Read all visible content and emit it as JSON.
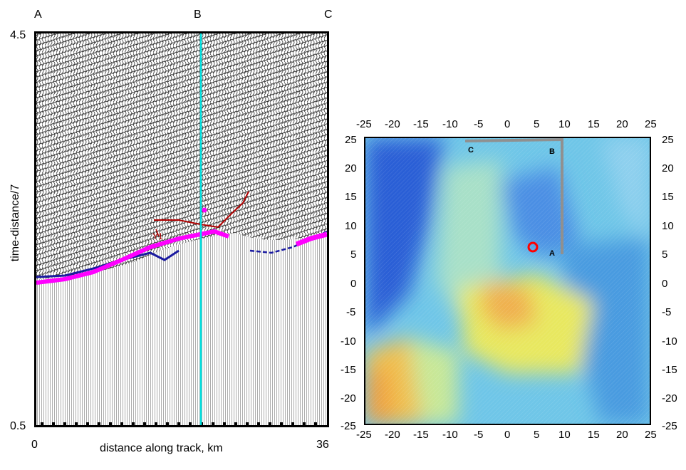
{
  "seismic": {
    "top_labels": [
      "A",
      "B",
      "C"
    ],
    "y_axis": {
      "label": "time-distance/7",
      "top": "4.5",
      "bottom": "0.5"
    },
    "x_axis": {
      "label": "distance along track, km",
      "left": "0",
      "right": "36"
    },
    "annotation": "Y1",
    "colors": {
      "horizon_magenta": "#ff00ff",
      "horizon_blue": "#1a1aa0",
      "red_line": "#b00000",
      "cyan_line": "#00e0e0"
    }
  },
  "map": {
    "x_ticks": [
      "-25",
      "-20",
      "-15",
      "-10",
      "-5",
      "0",
      "5",
      "10",
      "15",
      "20",
      "25"
    ],
    "y_ticks": [
      "25",
      "20",
      "15",
      "10",
      "5",
      "0",
      "-5",
      "-10",
      "-15",
      "-20",
      "-25"
    ],
    "track_labels": {
      "a": "A",
      "b": "B",
      "c": "C"
    },
    "colors": {
      "deep": "#2a5fd6",
      "mid": "#6fc6e8",
      "shallow": "#e8e860",
      "peak": "#f0a040",
      "track": "#909090",
      "marker": "#ff0000"
    }
  }
}
